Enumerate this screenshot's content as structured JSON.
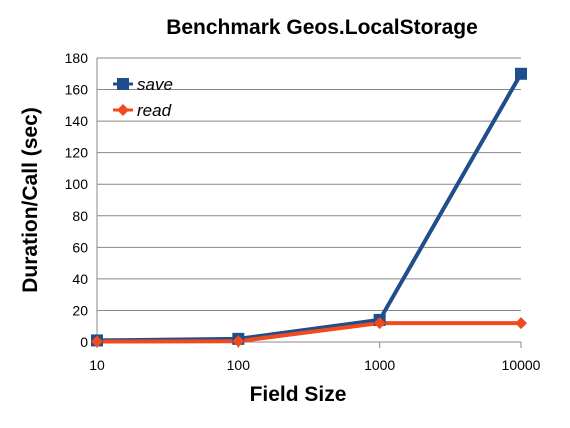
{
  "chart_data": {
    "type": "line",
    "title": "Benchmark Geos.LocalStorage",
    "xlabel": "Field Size",
    "ylabel": "Duration/Call (sec)",
    "x_scale": "log",
    "categories": [
      "10",
      "100",
      "1000",
      "10000"
    ],
    "ylim": [
      0,
      180
    ],
    "yticks": [
      0,
      20,
      40,
      60,
      80,
      100,
      120,
      140,
      160,
      180
    ],
    "grid": true,
    "legend_position": "top-left",
    "series": [
      {
        "name": "save",
        "values": [
          1,
          2,
          14,
          170
        ],
        "color": "#1f4e8c",
        "marker": "square"
      },
      {
        "name": "read",
        "values": [
          0.3,
          0.5,
          12,
          12
        ],
        "color": "#f04a1e",
        "marker": "diamond"
      }
    ]
  }
}
